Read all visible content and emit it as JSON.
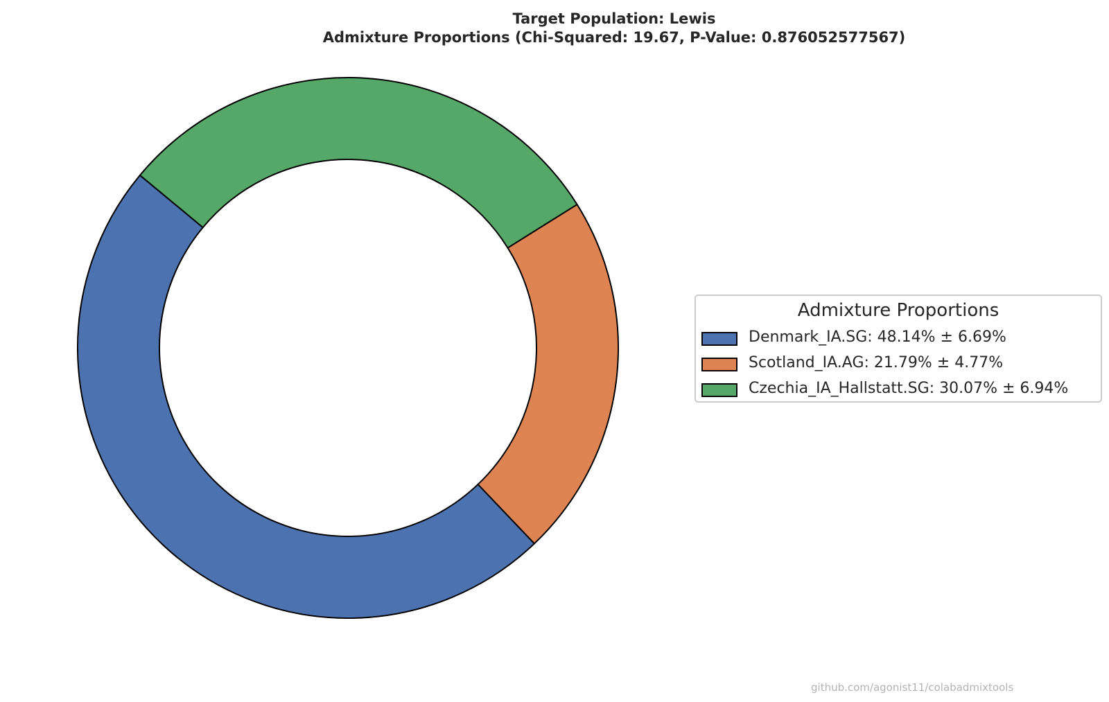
{
  "chart_data": {
    "type": "pie",
    "title": "Target Population: Lewis",
    "subtitle": "Admixture Proportions (Chi-Squared: 19.67, P-Value: 0.876052577567)",
    "legend_title": "Admixture Proportions",
    "legend_position": "right",
    "slices": [
      {
        "name": "Denmark_IA.SG",
        "value": 48.14,
        "error": 6.69,
        "color": "#4c72b0",
        "legend_label": "Denmark_IA.SG: 48.14% ± 6.69%"
      },
      {
        "name": "Scotland_IA.AG",
        "value": 21.79,
        "error": 4.77,
        "color": "#dd8452",
        "legend_label": "Scotland_IA.AG: 21.79% ± 4.77%"
      },
      {
        "name": "Czechia_IA_Hallstatt.SG",
        "value": 30.07,
        "error": 6.94,
        "color": "#55a868",
        "legend_label": "Czechia_IA_Hallstatt.SG: 30.07% ± 6.94%"
      }
    ],
    "donut": true
  },
  "watermark": "github.com/agonist11/colabadmixtools"
}
